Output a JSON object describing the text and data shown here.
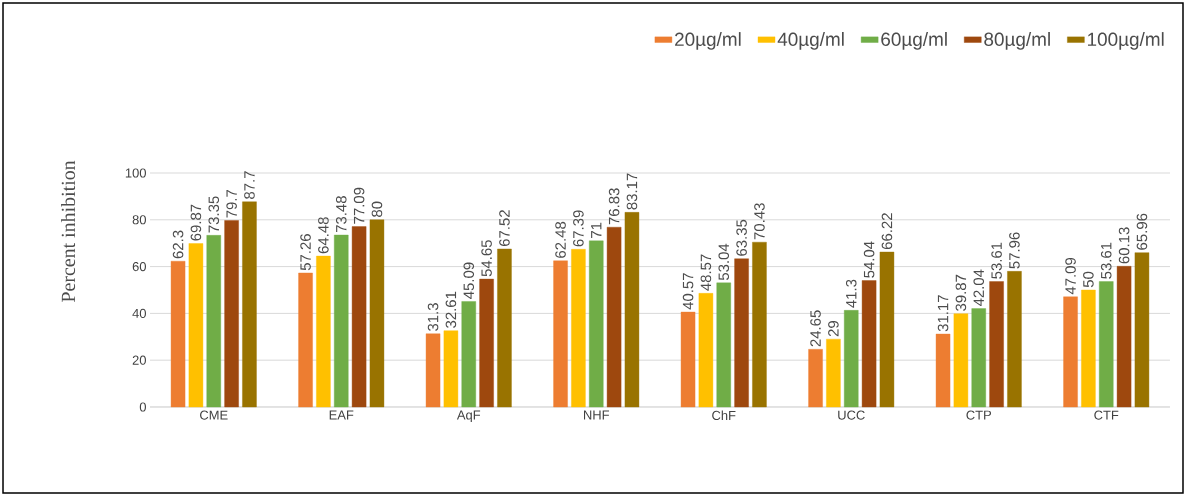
{
  "chart_data": {
    "type": "bar",
    "ylabel": "Percent inhibition",
    "categories": [
      "CME",
      "EAF",
      "AqF",
      "NHF",
      "ChF",
      "UCC",
      "CTP",
      "CTF"
    ],
    "series": [
      {
        "name": "20µg/ml",
        "color": "#ed7d31",
        "values": [
          62.3,
          57.26,
          31.3,
          62.48,
          40.57,
          24.65,
          31.17,
          47.09
        ]
      },
      {
        "name": "40µg/ml",
        "color": "#ffc000",
        "values": [
          69.87,
          64.48,
          32.61,
          67.39,
          48.57,
          29,
          39.87,
          50
        ]
      },
      {
        "name": "60µg/ml",
        "color": "#70ad47",
        "values": [
          73.35,
          73.48,
          45.09,
          71,
          53.04,
          41.3,
          42.04,
          53.61
        ]
      },
      {
        "name": "80µg/ml",
        "color": "#9e480e",
        "values": [
          79.7,
          77.09,
          54.65,
          76.83,
          63.35,
          54.04,
          53.61,
          60.13
        ]
      },
      {
        "name": "100µg/ml",
        "color": "#997300",
        "values": [
          87.7,
          80,
          67.52,
          83.17,
          70.43,
          66.22,
          57.96,
          65.96
        ]
      }
    ],
    "ylim": [
      0,
      100
    ],
    "yticks": [
      0,
      20,
      40,
      60,
      80,
      100
    ],
    "grid": "y",
    "legend": "top right",
    "data_labels": true
  }
}
